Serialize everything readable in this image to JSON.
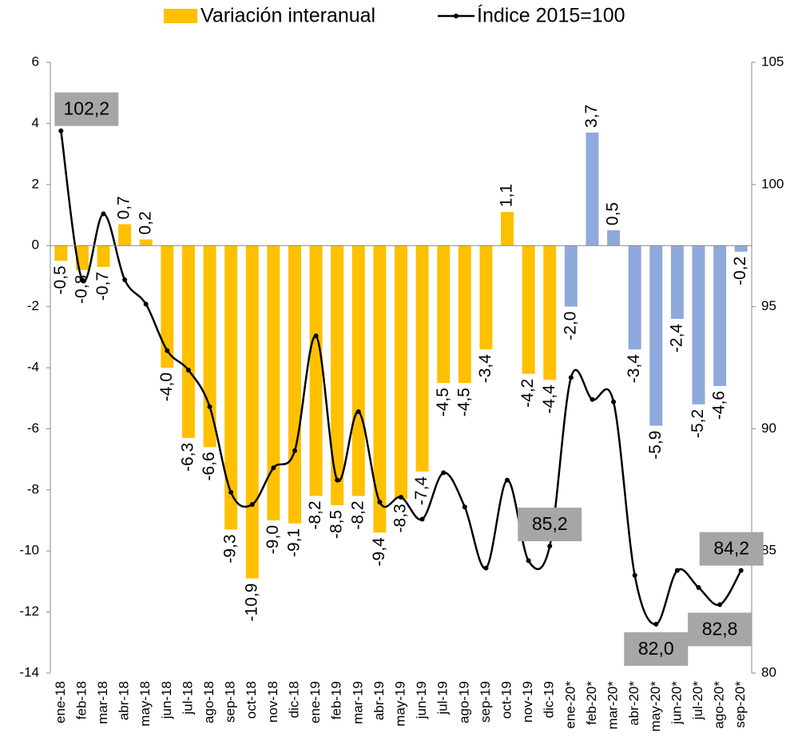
{
  "chart_data": {
    "type": "bar_line",
    "categories": [
      "ene-18",
      "feb-18",
      "mar-18",
      "abr-18",
      "may-18",
      "jun-18",
      "jul-18",
      "ago-18",
      "sep-18",
      "oct-18",
      "nov-18",
      "dic-18",
      "ene-19",
      "feb-19",
      "mar-19",
      "abr-19",
      "may-19",
      "jun-19",
      "jul-19",
      "ago-19",
      "sep-19",
      "oct-19",
      "nov-19",
      "dic-19",
      "ene-20*",
      "feb-20*",
      "mar-20*",
      "abr-20*",
      "may-20*",
      "jun-20*",
      "jul-20*",
      "ago-20*",
      "sep-20*"
    ],
    "series": [
      {
        "name": "Variación interanual",
        "type": "bar",
        "color": "#FFC000",
        "colors": [
          "#FFC000",
          "#FFC000",
          "#FFC000",
          "#FFC000",
          "#FFC000",
          "#FFC000",
          "#FFC000",
          "#FFC000",
          "#FFC000",
          "#FFC000",
          "#FFC000",
          "#FFC000",
          "#FFC000",
          "#FFC000",
          "#FFC000",
          "#FFC000",
          "#FFC000",
          "#FFC000",
          "#FFC000",
          "#FFC000",
          "#FFC000",
          "#FFC000",
          "#FFC000",
          "#FFC000",
          "#8EA9DB",
          "#8EA9DB",
          "#8EA9DB",
          "#8EA9DB",
          "#8EA9DB",
          "#8EA9DB",
          "#8EA9DB",
          "#8EA9DB",
          "#8EA9DB"
        ],
        "values": [
          -0.5,
          -0.8,
          -0.7,
          0.7,
          0.2,
          -4.0,
          -6.3,
          -6.6,
          -9.3,
          -10.9,
          -9.0,
          -9.1,
          -8.2,
          -8.5,
          -8.2,
          -9.4,
          -8.3,
          -7.4,
          -4.5,
          -4.5,
          -3.4,
          1.1,
          -4.2,
          -4.4,
          -2.0,
          3.7,
          0.5,
          -3.4,
          -5.9,
          -2.4,
          -5.2,
          -4.6,
          -0.2
        ],
        "value_labels": [
          "-0,5",
          "-0,8",
          "-0,7",
          "0,7",
          "0,2",
          "-4,0",
          "-6,3",
          "-6,6",
          "-9,3",
          "-10,9",
          "-9,0",
          "-9,1",
          "-8,2",
          "-8,5",
          "-8,2",
          "-9,4",
          "-8,3",
          "-7,4",
          "-4,5",
          "-4,5",
          "-3,4",
          "1,1",
          "-4,2",
          "-4,4",
          "-2,0",
          "3,7",
          "0,5",
          "-3,4",
          "-5,9",
          "-2,4",
          "-5,2",
          "-4,6",
          "-0,2"
        ]
      },
      {
        "name": "Índice 2015=100",
        "type": "line",
        "axis": "y2",
        "color": "#000000",
        "values": [
          102.2,
          96.1,
          98.8,
          96.1,
          95.1,
          93.2,
          92.4,
          90.9,
          87.4,
          86.9,
          88.4,
          89.1,
          93.8,
          87.9,
          90.7,
          87.0,
          87.2,
          86.3,
          88.2,
          86.8,
          84.3,
          87.9,
          84.6,
          85.2,
          92.1,
          91.2,
          91.1,
          84.0,
          82.0,
          84.2,
          83.5,
          82.8,
          84.2
        ],
        "value_labels": [
          "102,2",
          null,
          null,
          null,
          null,
          null,
          null,
          null,
          null,
          null,
          null,
          null,
          null,
          null,
          null,
          null,
          null,
          null,
          null,
          null,
          null,
          null,
          null,
          "85,2",
          null,
          null,
          null,
          null,
          "82,0",
          null,
          null,
          "82,8",
          "84,2"
        ]
      }
    ],
    "ylim": [
      -14,
      6
    ],
    "yticks": [
      -14,
      -12,
      -10,
      -8,
      -6,
      -4,
      -2,
      0,
      2,
      4,
      6
    ],
    "y2lim": [
      80,
      105
    ],
    "y2ticks": [
      80,
      85,
      90,
      95,
      100,
      105
    ],
    "legend": "top"
  }
}
